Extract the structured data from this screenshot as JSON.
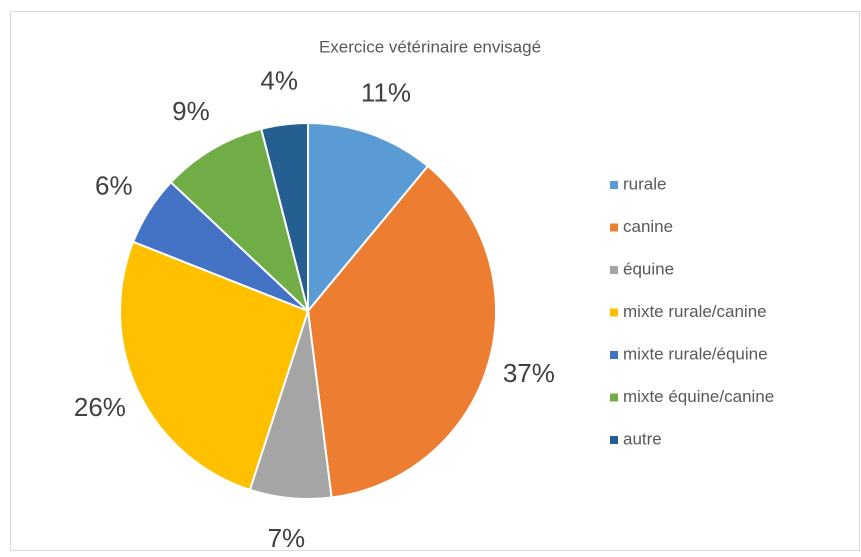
{
  "chart_data": {
    "type": "pie",
    "title": "Exercice vétérinaire envisagé",
    "categories": [
      "rurale",
      "canine",
      "équine",
      "mixte rurale/canine",
      "mixte rurale/équine",
      "mixte équine/canine",
      "autre"
    ],
    "values": [
      11,
      37,
      7,
      26,
      6,
      9,
      4
    ],
    "value_labels": [
      "11%",
      "37%",
      "7%",
      "26%",
      "6%",
      "9%",
      "4%"
    ],
    "colors": [
      "#5b9bd5",
      "#ed7d31",
      "#a5a5a5",
      "#ffc000",
      "#4472c4",
      "#70ad47",
      "#255e91"
    ],
    "legend": "right"
  }
}
